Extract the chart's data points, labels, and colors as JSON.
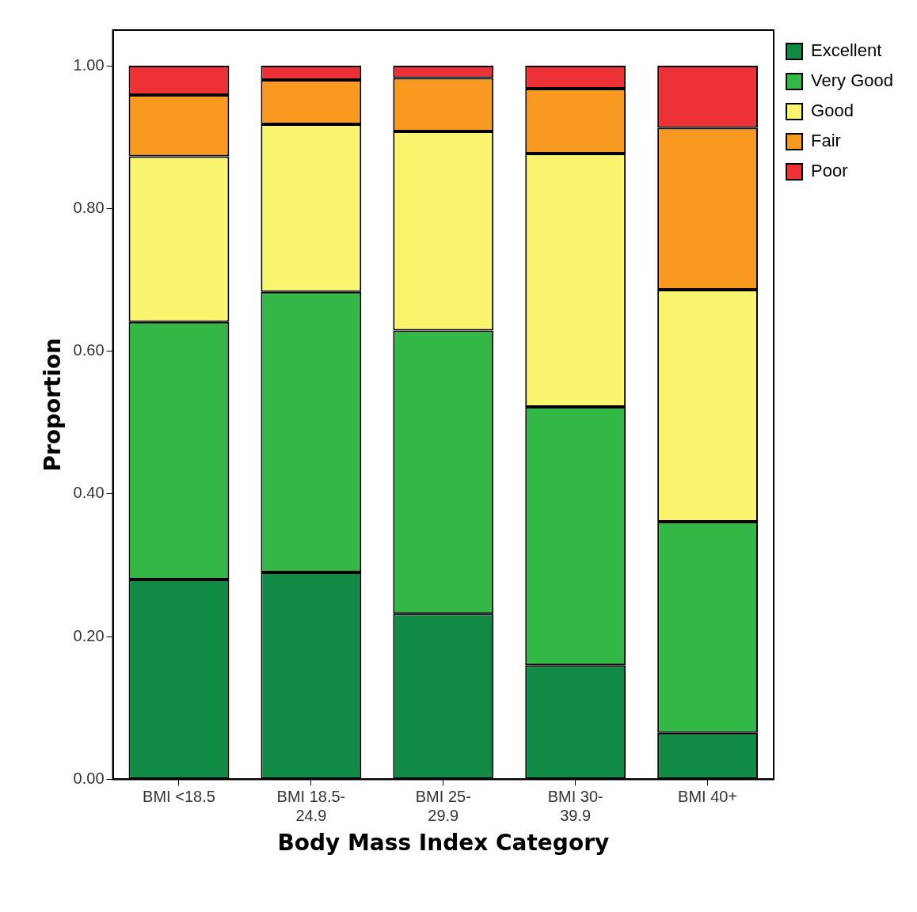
{
  "chart_data": {
    "type": "bar",
    "stacked": true,
    "xlabel": "Body Mass Index Category",
    "ylabel": "Proportion",
    "categories": [
      "BMI <18.5",
      "BMI 18.5-24.9",
      "BMI 25-29.9",
      "BMI 30-39.9",
      "BMI 40+"
    ],
    "series": [
      {
        "name": "Excellent",
        "color": "#108a44",
        "values": [
          0.28,
          0.29,
          0.232,
          0.16,
          0.065
        ]
      },
      {
        "name": "Very Good",
        "color": "#33b848",
        "values": [
          0.361,
          0.393,
          0.397,
          0.362,
          0.296
        ]
      },
      {
        "name": "Good",
        "color": "#f9f56e",
        "values": [
          0.232,
          0.235,
          0.279,
          0.355,
          0.325
        ]
      },
      {
        "name": "Fair",
        "color": "#f79a1f",
        "values": [
          0.086,
          0.062,
          0.075,
          0.091,
          0.227
        ]
      },
      {
        "name": "Poor",
        "color": "#ee3136",
        "values": [
          0.041,
          0.02,
          0.017,
          0.032,
          0.087
        ]
      }
    ],
    "ylim": [
      0,
      1.05
    ],
    "yticks": [
      {
        "value": 0,
        "label": "0.00"
      },
      {
        "value": 0.2,
        "label": "0.20"
      },
      {
        "value": 0.4,
        "label": "0.40"
      },
      {
        "value": 0.6,
        "label": "0.60"
      },
      {
        "value": 0.8,
        "label": "0.80"
      },
      {
        "value": 1,
        "label": "1.00"
      }
    ],
    "grid": false,
    "legend": "top right"
  }
}
